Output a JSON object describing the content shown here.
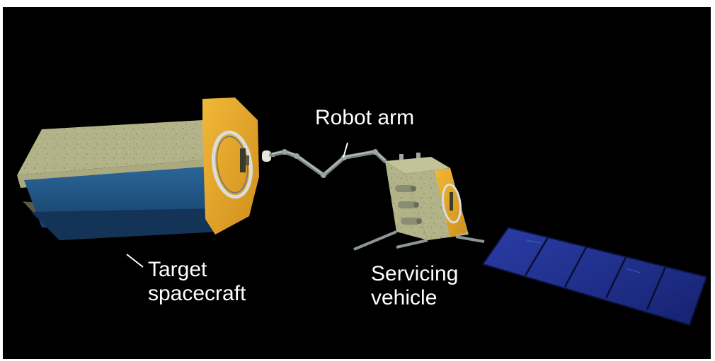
{
  "labels": {
    "robot_arm": "Robot arm",
    "target_line1": "Target",
    "target_line2": "spacecraft",
    "servicing_line1": "Servicing",
    "servicing_line2": "vehicle"
  },
  "colors": {
    "background": "#000000",
    "label_text": "#ffffff",
    "hull_sand": "#b4b48a",
    "panel_blue": "#1d4f80",
    "gold_end": "#e8a92c",
    "solar_blue": "#1f2d8c",
    "arm_gray": "#8c9696"
  },
  "icons": {
    "target": "target-spacecraft-icon",
    "servicer": "servicing-vehicle-icon",
    "arm": "robot-arm-icon",
    "solar": "solar-panel-icon"
  }
}
